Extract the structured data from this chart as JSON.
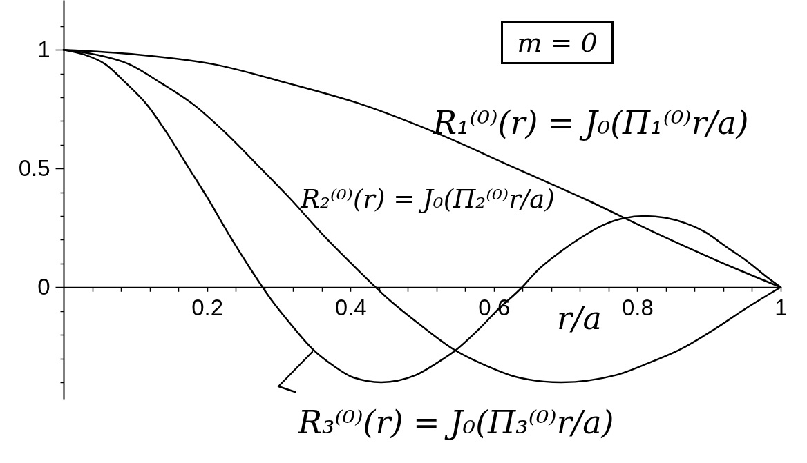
{
  "chart_data": {
    "type": "line",
    "xlabel": "r/a",
    "annotations": [
      "m = 0"
    ],
    "line_style": "solid",
    "xlim": [
      0,
      1
    ],
    "ylim": [
      -0.47,
      1.21
    ],
    "xticks": [
      {
        "value": 0.04,
        "label": null
      },
      {
        "value": 0.08,
        "label": null
      },
      {
        "value": 0.12,
        "label": null
      },
      {
        "value": 0.16,
        "label": null
      },
      0.2,
      {
        "value": 0.24,
        "label": null
      },
      {
        "value": 0.28,
        "label": null
      },
      {
        "value": 0.32,
        "label": null
      },
      {
        "value": 0.36,
        "label": null
      },
      0.4,
      {
        "value": 0.44,
        "label": null
      },
      {
        "value": 0.48,
        "label": null
      },
      {
        "value": 0.52,
        "label": null
      },
      {
        "value": 0.56,
        "label": null
      },
      0.6,
      {
        "value": 0.64,
        "label": null
      },
      {
        "value": 0.68,
        "label": null
      },
      {
        "value": 0.72,
        "label": null
      },
      {
        "value": 0.76,
        "label": null
      },
      0.8,
      {
        "value": 0.84,
        "label": null
      },
      {
        "value": 0.88,
        "label": null
      },
      {
        "value": 0.92,
        "label": null
      },
      {
        "value": 0.96,
        "label": null
      },
      1
    ],
    "yticks": [
      {
        "value": -0.4,
        "label": null
      },
      {
        "value": -0.3,
        "label": null
      },
      {
        "value": -0.2,
        "label": null
      },
      {
        "value": -0.1,
        "label": null
      },
      0,
      {
        "value": 0.1,
        "label": null
      },
      {
        "value": 0.2,
        "label": null
      },
      {
        "value": 0.3,
        "label": null
      },
      {
        "value": 0.4,
        "label": null
      },
      0.5,
      {
        "value": 0.6,
        "label": null
      },
      {
        "value": 0.7,
        "label": null
      },
      {
        "value": 0.8,
        "label": null
      },
      {
        "value": 0.9,
        "label": null
      },
      1,
      {
        "value": 1.1,
        "label": null
      }
    ],
    "series": [
      {
        "name": "R₁⁽⁰⁾(r) = J₀(Π₁⁽⁰⁾r/a)",
        "color": "#000000",
        "x": [
          0,
          0.104,
          0.208,
          0.312,
          0.416,
          0.52,
          0.624,
          0.728,
          0.832,
          0.936,
          1
        ],
        "values": [
          1,
          0.98,
          0.94,
          0.86,
          0.77,
          0.65,
          0.51,
          0.37,
          0.22,
          0.08,
          0
        ]
      },
      {
        "name": "R₂⁽⁰⁾(r) = J₀(Π₂⁽⁰⁾r/a)",
        "color": "#000000",
        "x": [
          0,
          0.045,
          0.091,
          0.136,
          0.181,
          0.226,
          0.272,
          0.317,
          0.362,
          0.408,
          0.453,
          0.498,
          0.543,
          0.589,
          0.634,
          0.694,
          0.77,
          0.815,
          0.861,
          0.906,
          0.951,
          1
        ],
        "values": [
          1,
          0.98,
          0.94,
          0.86,
          0.77,
          0.65,
          0.51,
          0.37,
          0.22,
          0.08,
          -0.05,
          -0.16,
          -0.26,
          -0.33,
          -0.38,
          -0.4,
          -0.37,
          -0.32,
          -0.26,
          -0.18,
          -0.09,
          0
        ]
      },
      {
        "name": "R₃⁽⁰⁾(r) = J₀(Π₃⁽⁰⁾r/a)",
        "color": "#000000",
        "x": [
          0,
          0.029,
          0.058,
          0.087,
          0.116,
          0.144,
          0.173,
          0.202,
          0.231,
          0.26,
          0.289,
          0.318,
          0.347,
          0.376,
          0.404,
          0.443,
          0.491,
          0.52,
          0.549,
          0.578,
          0.607,
          0.636,
          0.664,
          0.693,
          0.722,
          0.751,
          0.78,
          0.811,
          0.867,
          0.896,
          0.924,
          0.953,
          0.982,
          1
        ],
        "values": [
          1,
          0.98,
          0.94,
          0.86,
          0.77,
          0.65,
          0.51,
          0.37,
          0.22,
          0.08,
          -0.05,
          -0.16,
          -0.26,
          -0.33,
          -0.38,
          -0.4,
          -0.37,
          -0.32,
          -0.26,
          -0.18,
          -0.09,
          -0.01,
          0.08,
          0.15,
          0.21,
          0.26,
          0.29,
          0.3,
          0.27,
          0.23,
          0.17,
          0.11,
          0.04,
          0
        ]
      }
    ]
  }
}
